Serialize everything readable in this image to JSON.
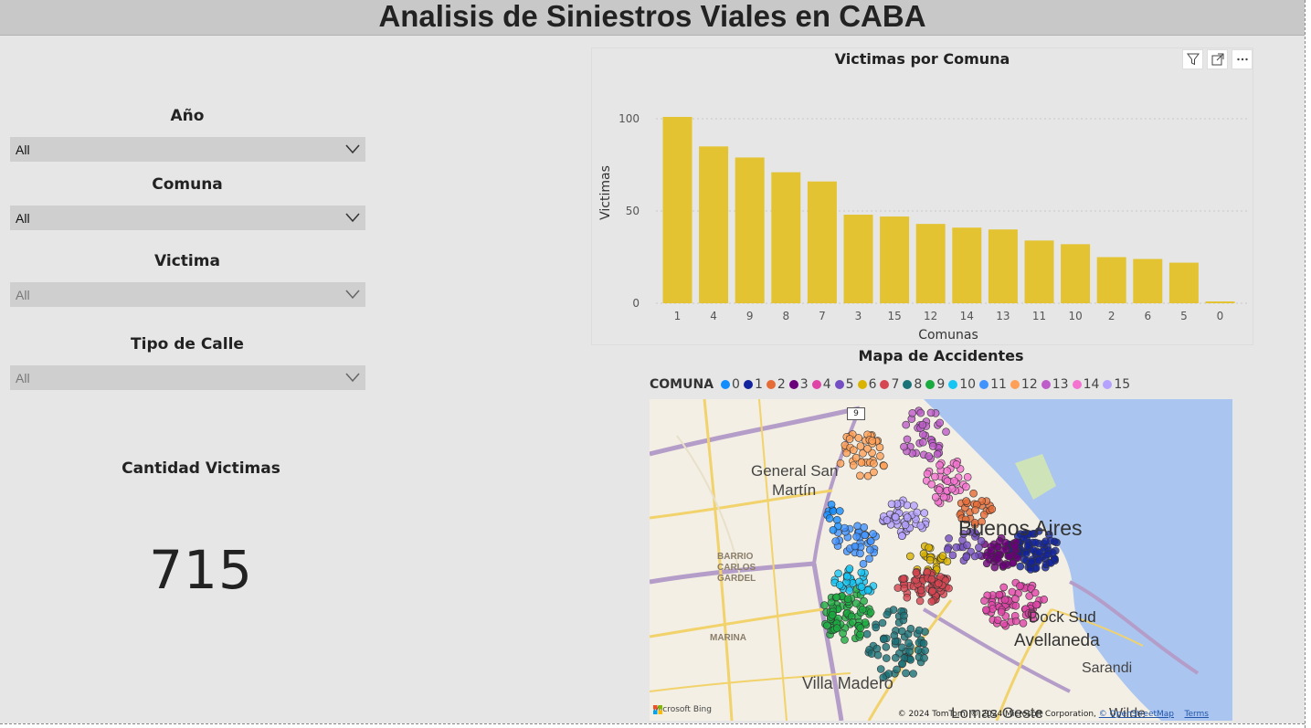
{
  "header": {
    "title": "Analisis de Siniestros Viales en CABA"
  },
  "slicers": [
    {
      "title": "Año",
      "value": "All"
    },
    {
      "title": "Comuna",
      "value": "All"
    },
    {
      "title": "Victima",
      "value": "All"
    },
    {
      "title": "Tipo de Calle",
      "value": "All"
    }
  ],
  "kpi": {
    "title": "Cantidad Victimas",
    "value": "715"
  },
  "chart": {
    "title": "Victimas por Comuna",
    "icons": [
      "filter-icon",
      "focus-mode-icon",
      "more-options-icon"
    ]
  },
  "chart_data": {
    "type": "bar",
    "title": "Victimas por Comuna",
    "xlabel": "Comunas",
    "ylabel": "Victimas",
    "categories": [
      "1",
      "4",
      "9",
      "8",
      "7",
      "3",
      "15",
      "12",
      "14",
      "13",
      "11",
      "10",
      "2",
      "6",
      "5",
      "0"
    ],
    "values": [
      101,
      85,
      79,
      71,
      66,
      48,
      47,
      43,
      41,
      40,
      34,
      32,
      25,
      24,
      22,
      1
    ],
    "ylim": [
      0,
      110
    ],
    "yticks": [
      0,
      50,
      100
    ],
    "grid": true,
    "color": "#e3c332"
  },
  "map": {
    "title": "Mapa de Accidentes",
    "legend_title": "COMUNA",
    "legend": [
      {
        "label": "0",
        "color": "#118dff"
      },
      {
        "label": "1",
        "color": "#12239e"
      },
      {
        "label": "2",
        "color": "#e66c37"
      },
      {
        "label": "3",
        "color": "#6b007b"
      },
      {
        "label": "4",
        "color": "#e044a7"
      },
      {
        "label": "5",
        "color": "#744ec2"
      },
      {
        "label": "6",
        "color": "#d9b300"
      },
      {
        "label": "7",
        "color": "#d64550"
      },
      {
        "label": "8",
        "color": "#197278"
      },
      {
        "label": "9",
        "color": "#1aab40"
      },
      {
        "label": "10",
        "color": "#15c6f4"
      },
      {
        "label": "11",
        "color": "#4092ff"
      },
      {
        "label": "12",
        "color": "#ffa058"
      },
      {
        "label": "13",
        "color": "#be5dc9"
      },
      {
        "label": "14",
        "color": "#f472d0"
      },
      {
        "label": "15",
        "color": "#b5a1ff"
      }
    ],
    "places": {
      "general_san_martin_1": "General San",
      "general_san_martin_2": "Martín",
      "buenos_aires": "Buenos Aires",
      "dock_sud": "Dock Sud",
      "avellaneda": "Avellaneda",
      "sarandi": "Sarandi",
      "villa_madero": "Villa Madero",
      "lomas_oeste": "Lomas Oeste",
      "wilde": "Wilde",
      "barrio_carlos_gardel_1": "BARRIO",
      "barrio_carlos_gardel_2": "CARLOS",
      "barrio_carlos_gardel_3": "GARDEL",
      "marina": "MARINA",
      "road_shield": "9"
    },
    "bing": "Microsoft Bing",
    "attribution": "© 2024 TomTom, © 2024 Microsoft Corporation,",
    "osm": "© OpenStreetMap",
    "terms": "Terms"
  }
}
